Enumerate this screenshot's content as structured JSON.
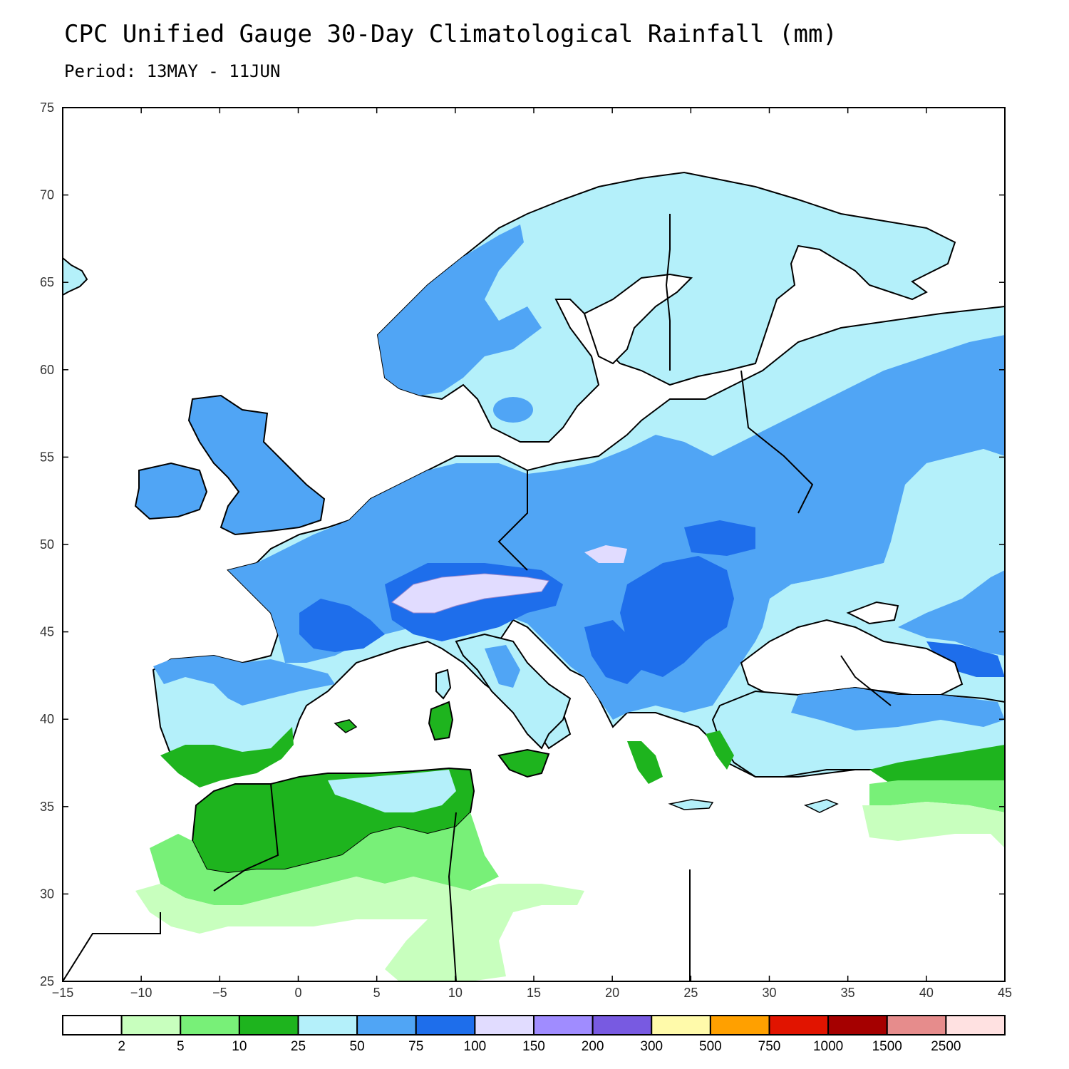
{
  "title": "CPC Unified Gauge 30-Day Climatological Rainfall (mm)",
  "subtitle": "Period: 13MAY - 11JUN",
  "map": {
    "lon_range": [
      -15,
      45
    ],
    "lat_range": [
      25,
      75
    ],
    "x_ticks": [
      -15,
      -10,
      -5,
      0,
      5,
      10,
      15,
      20,
      25,
      30,
      35,
      40,
      45
    ],
    "y_ticks": [
      25,
      30,
      35,
      40,
      45,
      50,
      55,
      60,
      65,
      70,
      75
    ],
    "x_tick_labels": [
      "−15",
      "−10",
      "−5",
      "0",
      "5",
      "10",
      "15",
      "20",
      "25",
      "30",
      "35",
      "40",
      "45"
    ],
    "y_tick_labels": [
      "25",
      "30",
      "35",
      "40",
      "45",
      "50",
      "55",
      "60",
      "65",
      "70",
      "75"
    ]
  },
  "colorbar": {
    "colors": [
      "#ffffff",
      "#c8ffbe",
      "#78f078",
      "#1eb41e",
      "#b4f0fa",
      "#50a5f5",
      "#1e6eeb",
      "#e1dcff",
      "#a08cff",
      "#785ae1",
      "#fffaaa",
      "#ffa000",
      "#e11400",
      "#a50000",
      "#e68c8c",
      "#ffe1e1"
    ],
    "labels": [
      "2",
      "5",
      "10",
      "25",
      "50",
      "75",
      "100",
      "150",
      "200",
      "300",
      "500",
      "750",
      "1000",
      "1500",
      "2500"
    ]
  },
  "regions": [
    {
      "name": "Iceland",
      "cls": "#b4f0fa"
    },
    {
      "name": "Scandinavia",
      "cls": "#b4f0fa"
    },
    {
      "name": "Norway coast",
      "cls": "#50a5f5"
    },
    {
      "name": "British Isles",
      "cls": "#50a5f5"
    },
    {
      "name": "Central Europe",
      "cls": "#50a5f5"
    },
    {
      "name": "Alps",
      "cls": "#e1dcff"
    },
    {
      "name": "Iberia",
      "cls": "#b4f0fa"
    },
    {
      "name": "North Africa",
      "cls": "#1eb41e"
    },
    {
      "name": "Eastern Europe",
      "cls": "#50a5f5"
    },
    {
      "name": "Russia East",
      "cls": "#b4f0fa"
    },
    {
      "name": "Turkey",
      "cls": "#b4f0fa"
    }
  ]
}
